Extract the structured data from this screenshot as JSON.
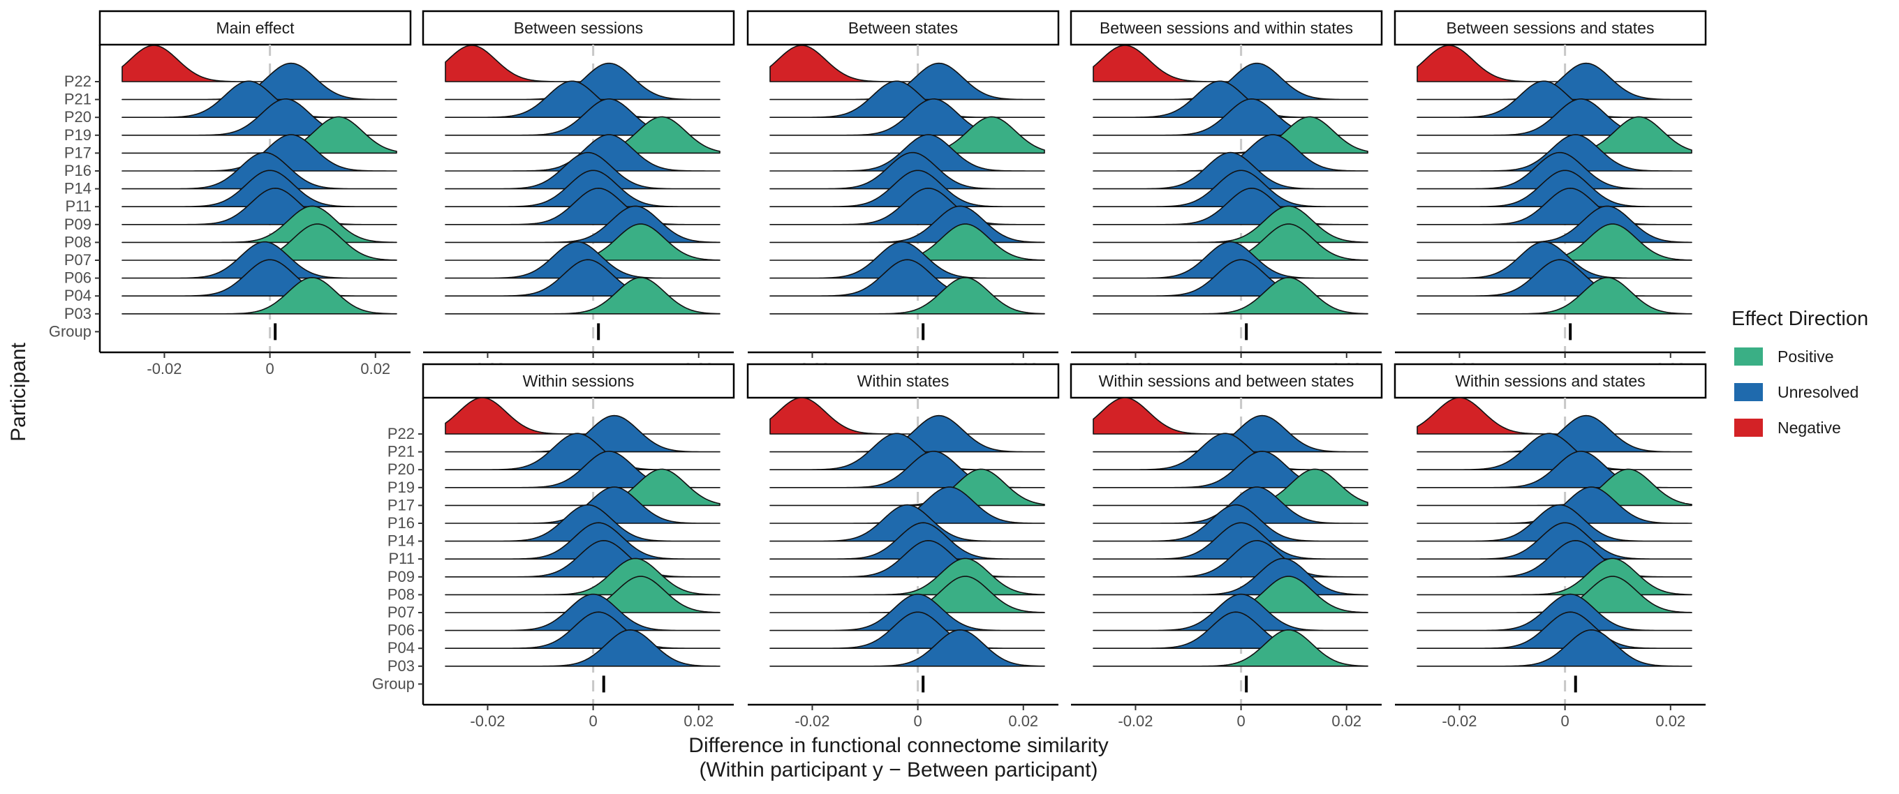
{
  "chart_data": {
    "type": "ridgeline",
    "xlabel": "Difference in functional connectome similarity",
    "xlabel_line2": "(Within participant y − Between participant)",
    "ylabel": "Participant",
    "x_range": [
      -0.028,
      0.024
    ],
    "x_ticks": [
      -0.02,
      0,
      0.02
    ],
    "x_tick_labels": [
      "-0.02",
      "0",
      "0.02"
    ],
    "reference_line_x": 0,
    "grid": false,
    "participants": [
      "P22",
      "P21",
      "P20",
      "P19",
      "P17",
      "P16",
      "P14",
      "P11",
      "P09",
      "P08",
      "P07",
      "P06",
      "P04",
      "P03"
    ],
    "group_label": "Group",
    "legend": {
      "title": "Effect Direction",
      "position": "right",
      "items": [
        {
          "label": "Positive",
          "key": "P",
          "color": "#3aaf85"
        },
        {
          "label": "Unresolved",
          "key": "U",
          "color": "#1f6aad"
        },
        {
          "label": "Negative",
          "key": "N",
          "color": "#d32226"
        }
      ]
    },
    "panels": [
      {
        "title": "Main effect",
        "means": [
          -0.022,
          0.004,
          -0.004,
          0.003,
          0.013,
          0.004,
          -0.001,
          0.0,
          0.001,
          0.008,
          0.009,
          -0.001,
          0.0,
          0.008
        ],
        "directions": [
          "N",
          "U",
          "U",
          "U",
          "P",
          "U",
          "U",
          "U",
          "U",
          "P",
          "P",
          "U",
          "U",
          "P"
        ],
        "group_mean": 0.001
      },
      {
        "title": "Between sessions",
        "means": [
          -0.023,
          0.003,
          -0.004,
          0.003,
          0.013,
          0.003,
          -0.001,
          0.0,
          0.001,
          0.008,
          0.009,
          -0.003,
          -0.001,
          0.009
        ],
        "directions": [
          "N",
          "U",
          "U",
          "U",
          "P",
          "U",
          "U",
          "U",
          "U",
          "U",
          "P",
          "U",
          "U",
          "P"
        ],
        "group_mean": 0.001
      },
      {
        "title": "Between states",
        "means": [
          -0.022,
          0.004,
          -0.004,
          0.003,
          0.014,
          0.002,
          -0.001,
          0.0,
          0.002,
          0.008,
          0.009,
          -0.003,
          -0.002,
          0.009
        ],
        "directions": [
          "N",
          "U",
          "U",
          "U",
          "P",
          "U",
          "U",
          "U",
          "U",
          "U",
          "P",
          "U",
          "U",
          "P"
        ],
        "group_mean": 0.001
      },
      {
        "title": "Between sessions and within states",
        "means": [
          -0.022,
          0.003,
          -0.004,
          0.002,
          0.013,
          0.006,
          -0.002,
          0.0,
          0.002,
          0.009,
          0.009,
          -0.002,
          0.0,
          0.009
        ],
        "directions": [
          "N",
          "U",
          "U",
          "U",
          "P",
          "U",
          "U",
          "U",
          "U",
          "P",
          "P",
          "U",
          "U",
          "P"
        ],
        "group_mean": 0.001
      },
      {
        "title": "Between sessions and states",
        "means": [
          -0.022,
          0.004,
          -0.004,
          0.003,
          0.014,
          0.002,
          -0.001,
          0.0,
          0.001,
          0.008,
          0.009,
          -0.004,
          -0.001,
          0.008
        ],
        "directions": [
          "N",
          "U",
          "U",
          "U",
          "P",
          "U",
          "U",
          "U",
          "U",
          "U",
          "P",
          "U",
          "U",
          "P"
        ],
        "group_mean": 0.001
      },
      {
        "title": "Within sessions",
        "means": [
          -0.021,
          0.004,
          -0.003,
          0.003,
          0.013,
          0.004,
          -0.001,
          0.001,
          0.002,
          0.008,
          0.009,
          0.0,
          0.001,
          0.007
        ],
        "directions": [
          "N",
          "U",
          "U",
          "U",
          "P",
          "U",
          "U",
          "U",
          "U",
          "P",
          "P",
          "U",
          "U",
          "U"
        ],
        "group_mean": 0.002
      },
      {
        "title": "Within states",
        "means": [
          -0.022,
          0.004,
          -0.004,
          0.003,
          0.012,
          0.006,
          -0.002,
          0.001,
          0.002,
          0.009,
          0.009,
          0.0,
          0.0,
          0.008
        ],
        "directions": [
          "N",
          "U",
          "U",
          "U",
          "P",
          "U",
          "U",
          "U",
          "U",
          "P",
          "P",
          "U",
          "U",
          "U"
        ],
        "group_mean": 0.001
      },
      {
        "title": "Within sessions and between states",
        "means": [
          -0.022,
          0.004,
          -0.003,
          0.004,
          0.014,
          0.003,
          -0.001,
          0.0,
          0.003,
          0.008,
          0.009,
          0.0,
          -0.001,
          0.009
        ],
        "directions": [
          "N",
          "U",
          "U",
          "U",
          "P",
          "U",
          "U",
          "U",
          "U",
          "U",
          "P",
          "U",
          "U",
          "P"
        ],
        "group_mean": 0.001
      },
      {
        "title": "Within sessions and states",
        "means": [
          -0.02,
          0.004,
          -0.003,
          0.003,
          0.012,
          0.005,
          -0.001,
          0.0,
          0.002,
          0.009,
          0.009,
          0.001,
          0.001,
          0.005
        ],
        "directions": [
          "N",
          "U",
          "U",
          "U",
          "P",
          "U",
          "U",
          "U",
          "U",
          "P",
          "P",
          "U",
          "U",
          "U"
        ],
        "group_mean": 0.002
      }
    ]
  }
}
